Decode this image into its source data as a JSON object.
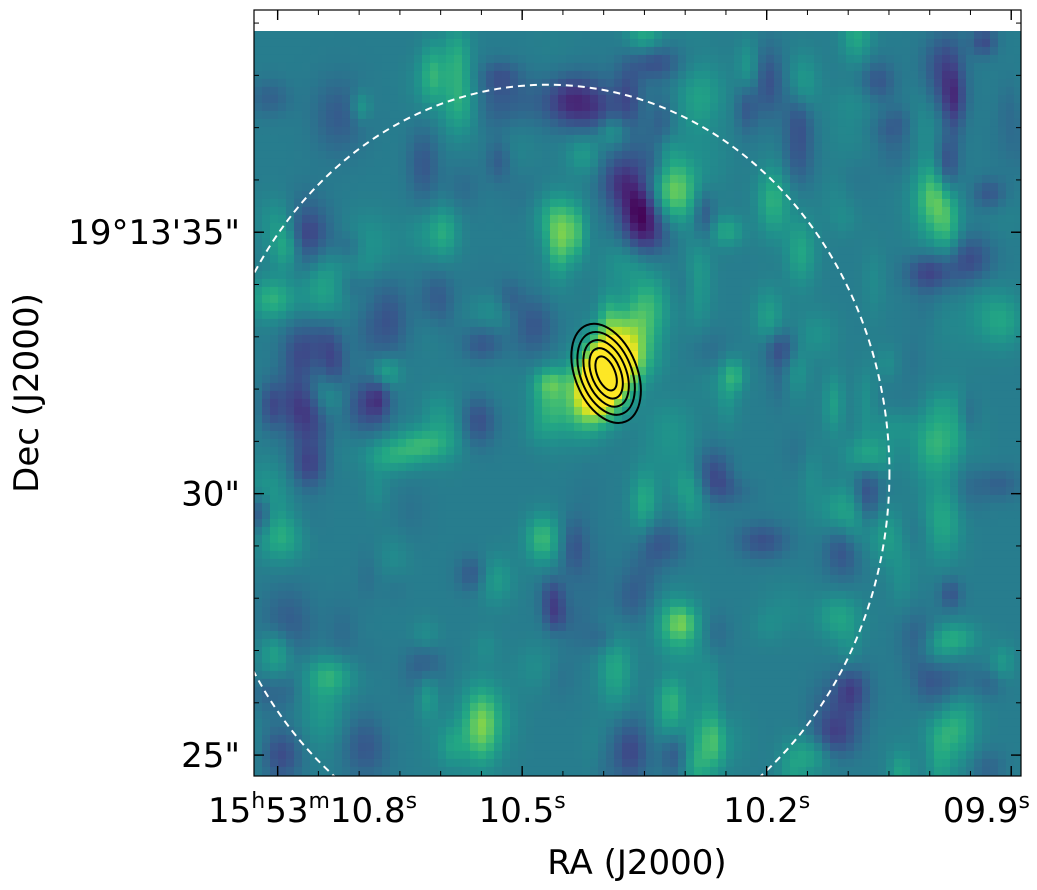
{
  "chart_data": {
    "type": "heatmap",
    "title": "",
    "xlabel": "RA (J2000)",
    "ylabel": "Dec (J2000)",
    "colormap": "viridis",
    "x_ticks": [
      {
        "value_s": 10.8,
        "label": [
          {
            "t": "15"
          },
          {
            "t": "h",
            "sup": true
          },
          {
            "t": "53"
          },
          {
            "t": "m",
            "sup": true
          },
          {
            "t": "10.8"
          },
          {
            "t": "s",
            "sup": true
          }
        ]
      },
      {
        "value_s": 10.5,
        "label": [
          {
            "t": "10.5"
          },
          {
            "t": "s",
            "sup": true
          }
        ]
      },
      {
        "value_s": 10.2,
        "label": [
          {
            "t": "10.2"
          },
          {
            "t": "s",
            "sup": true
          }
        ]
      },
      {
        "value_s": 9.9,
        "label": [
          {
            "t": "09.9"
          },
          {
            "t": "s",
            "sup": true
          }
        ]
      }
    ],
    "y_ticks": [
      {
        "value_arcsec": 35,
        "label": "19°13'35\""
      },
      {
        "value_arcsec": 30,
        "label": "30\""
      },
      {
        "value_arcsec": 25,
        "label": "25\""
      }
    ],
    "x_range_s": [
      10.829,
      9.888
    ],
    "y_range_arcsec": [
      24.6,
      39.25
    ],
    "image_top_arcsec": 38.85,
    "source": {
      "ra_s": 10.397,
      "dec_arcsec": 32.3,
      "peak_level": 1.0,
      "contour_count": 5
    },
    "dashed_ellipse": {
      "center_ra_s": 10.469,
      "center_dec_arcsec": 30.4,
      "color": "#ffffff"
    },
    "colors": {
      "contour": "#000000",
      "ellipse": "#ffffff",
      "background": "#ffffff"
    }
  }
}
